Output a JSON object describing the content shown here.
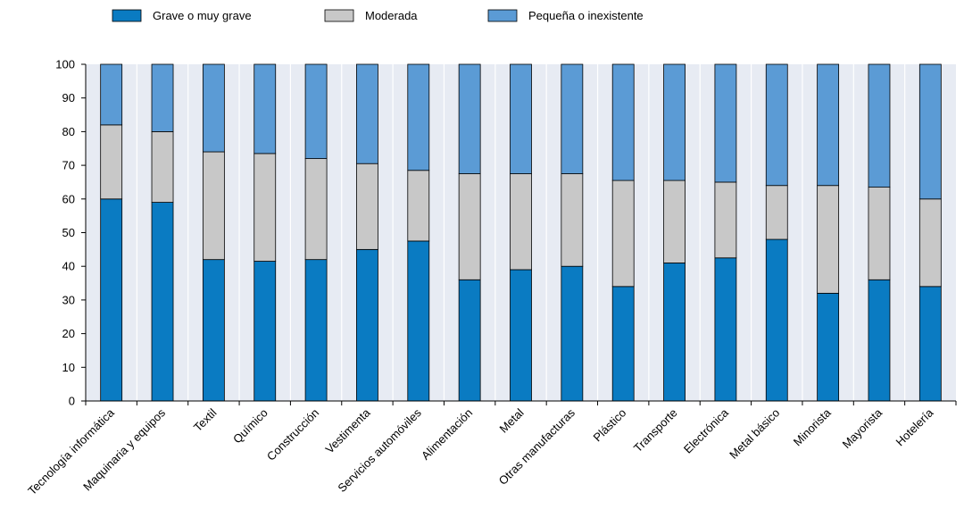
{
  "chart_data": {
    "type": "bar",
    "stacked": true,
    "title": "",
    "xlabel": "",
    "ylabel": "",
    "ylim": [
      0,
      100
    ],
    "yticks": [
      0,
      10,
      20,
      30,
      40,
      50,
      60,
      70,
      80,
      90,
      100
    ],
    "grid": false,
    "legend_position": "top",
    "categories": [
      "Tecnología informática",
      "Maquinaria y equipos",
      "Textil",
      "Químico",
      "Construcción",
      "Vestimenta",
      "Servicios automóviles",
      "Alimentación",
      "Metal",
      "Otras manufacturas",
      "Plástico",
      "Transporte",
      "Electrónica",
      "Metal básico",
      "Minorista",
      "Mayorista",
      "Hotelería"
    ],
    "series": [
      {
        "name": "Grave o muy grave",
        "color": "#0a7bc2",
        "values": [
          60,
          59,
          42,
          41.5,
          42,
          45,
          47.5,
          36,
          39,
          40,
          34,
          41,
          42.5,
          48,
          32,
          36,
          34
        ]
      },
      {
        "name": "Moderada",
        "color": "#c8c8c8",
        "values": [
          22,
          21,
          32,
          32,
          30,
          25.5,
          21,
          31.5,
          28.5,
          27.5,
          31.5,
          24.5,
          22.5,
          16,
          32,
          27.5,
          26
        ]
      },
      {
        "name": "Pequeña o inexistente",
        "color": "#5b9bd5",
        "values": [
          18,
          20,
          26,
          26.5,
          28,
          29.5,
          31.5,
          32.5,
          32.5,
          32.5,
          34.5,
          34.5,
          35,
          36,
          36,
          36.5,
          40
        ]
      }
    ]
  }
}
